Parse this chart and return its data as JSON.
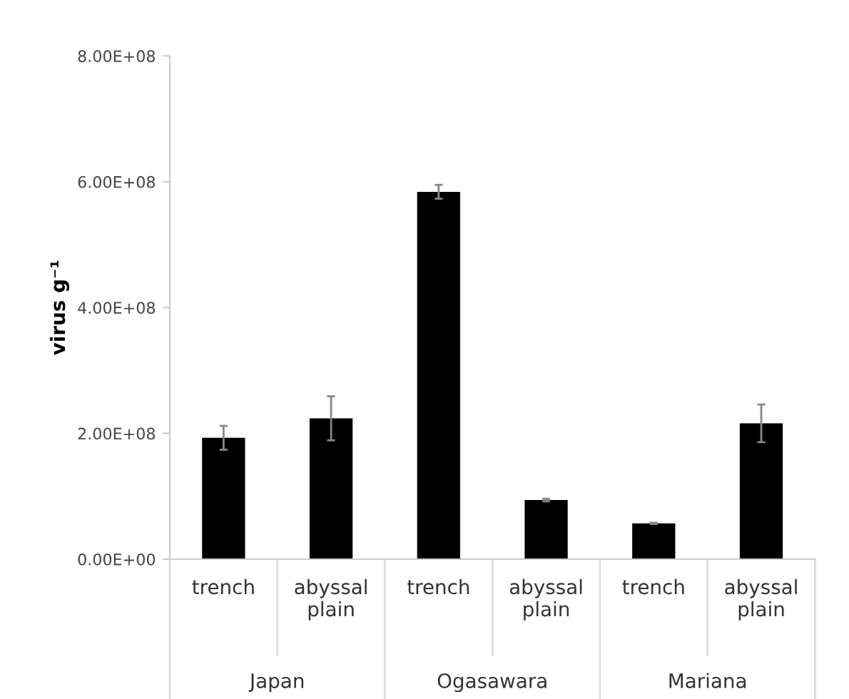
{
  "chart_data": {
    "type": "bar",
    "ylabel": "virus g⁻¹",
    "categories": [
      "trench",
      "abyssal\nplain",
      "trench",
      "abyssal\nplain",
      "trench",
      "abyssal\nplain"
    ],
    "series": [
      {
        "color": "#000000",
        "values": [
          193000000.0,
          224000000.0,
          584000000.0,
          94000000.0,
          57000000.0,
          216000000.0
        ],
        "errors": [
          19000000.0,
          35000000.0,
          11000000.0,
          2000000.0,
          1000000.0,
          30000000.0
        ]
      }
    ],
    "ylim": [
      0,
      800000000.0
    ],
    "yticks": [
      {
        "value": 0,
        "label": "0.00E+00"
      },
      {
        "value": 200000000.0,
        "label": "2.00E+08"
      },
      {
        "value": 400000000.0,
        "label": "4.00E+08"
      },
      {
        "value": 600000000.0,
        "label": "6.00E+08"
      },
      {
        "value": 800000000.0,
        "label": "8.00E+08"
      }
    ],
    "annotations": [
      "Japan",
      "Ogasawara",
      "Mariana"
    ],
    "grid": false
  }
}
